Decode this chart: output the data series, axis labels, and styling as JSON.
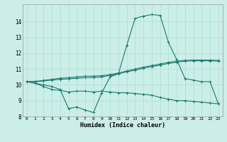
{
  "xlabel": "Humidex (Indice chaleur)",
  "background_color": "#cceee8",
  "grid_color": "#aaddd8",
  "line_color": "#1a7a6e",
  "x": [
    0,
    1,
    2,
    3,
    4,
    5,
    6,
    7,
    8,
    9,
    10,
    11,
    12,
    13,
    14,
    15,
    16,
    17,
    18,
    19,
    20,
    21,
    22,
    23
  ],
  "line1": [
    10.2,
    10.1,
    10.0,
    9.9,
    9.7,
    8.5,
    8.6,
    8.4,
    8.25,
    9.5,
    10.5,
    10.7,
    12.5,
    14.2,
    14.35,
    14.45,
    14.4,
    12.7,
    11.6,
    10.4,
    10.3,
    10.2,
    10.2,
    8.8
  ],
  "line2": [
    10.2,
    10.1,
    9.9,
    9.7,
    9.65,
    9.55,
    9.6,
    9.6,
    9.55,
    9.6,
    9.55,
    9.5,
    9.5,
    9.45,
    9.4,
    9.35,
    9.2,
    9.1,
    9.0,
    9.0,
    8.95,
    8.9,
    8.85,
    8.8
  ],
  "line3": [
    10.2,
    10.2,
    10.25,
    10.3,
    10.35,
    10.38,
    10.42,
    10.45,
    10.47,
    10.5,
    10.6,
    10.7,
    10.82,
    10.93,
    11.05,
    11.15,
    11.25,
    11.35,
    11.43,
    11.5,
    11.52,
    11.52,
    11.52,
    11.5
  ],
  "line4": [
    10.2,
    10.22,
    10.28,
    10.35,
    10.42,
    10.45,
    10.5,
    10.55,
    10.55,
    10.58,
    10.65,
    10.75,
    10.88,
    11.0,
    11.12,
    11.22,
    11.32,
    11.42,
    11.5,
    11.55,
    11.57,
    11.57,
    11.57,
    11.55
  ],
  "ylim": [
    8,
    15
  ],
  "xlim": [
    -0.5,
    23.5
  ],
  "yticks": [
    8,
    9,
    10,
    11,
    12,
    13,
    14
  ],
  "xticks": [
    0,
    1,
    2,
    3,
    4,
    5,
    6,
    7,
    8,
    9,
    10,
    11,
    12,
    13,
    14,
    15,
    16,
    17,
    18,
    19,
    20,
    21,
    22,
    23
  ]
}
